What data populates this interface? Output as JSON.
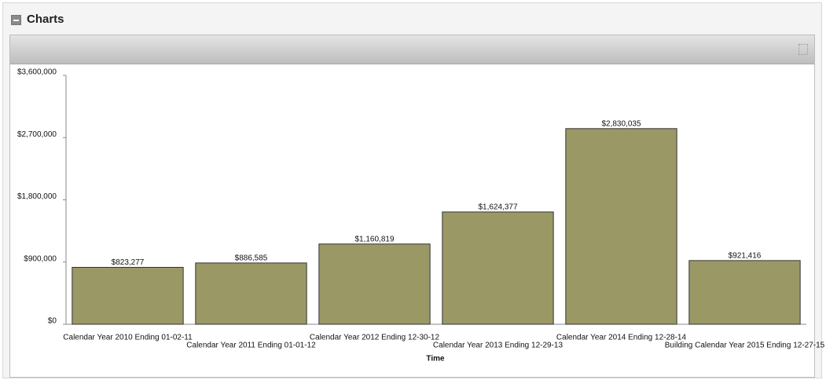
{
  "page": {
    "title": "Charts"
  },
  "chart_data": {
    "type": "bar",
    "x_label": "Time",
    "categories": [
      "Calendar Year 2010 Ending 01-02-11",
      "Calendar Year 2011 Ending 01-01-12",
      "Calendar Year 2012 Ending 12-30-12",
      "Calendar Year 2013 Ending 12-29-13",
      "Calendar Year 2014 Ending 12-28-14",
      "Building Calendar Year 2015 Ending 12-27-15"
    ],
    "values": [
      823277,
      886585,
      1160819,
      1624377,
      2830035,
      921416
    ],
    "value_labels": [
      "$823,277",
      "$886,585",
      "$1,160,819",
      "$1,624,377",
      "$2,830,035",
      "$921,416"
    ],
    "color": "#9a9966",
    "ylim": [
      0,
      3600000
    ],
    "yticks": [
      {
        "value": 0,
        "label": "$0"
      },
      {
        "value": 900000,
        "label": "$900,000"
      },
      {
        "value": 1800000,
        "label": "$1,800,000"
      },
      {
        "value": 2700000,
        "label": "$2,700,000"
      },
      {
        "value": 3600000,
        "label": "$3,600,000"
      }
    ],
    "grid": false
  }
}
